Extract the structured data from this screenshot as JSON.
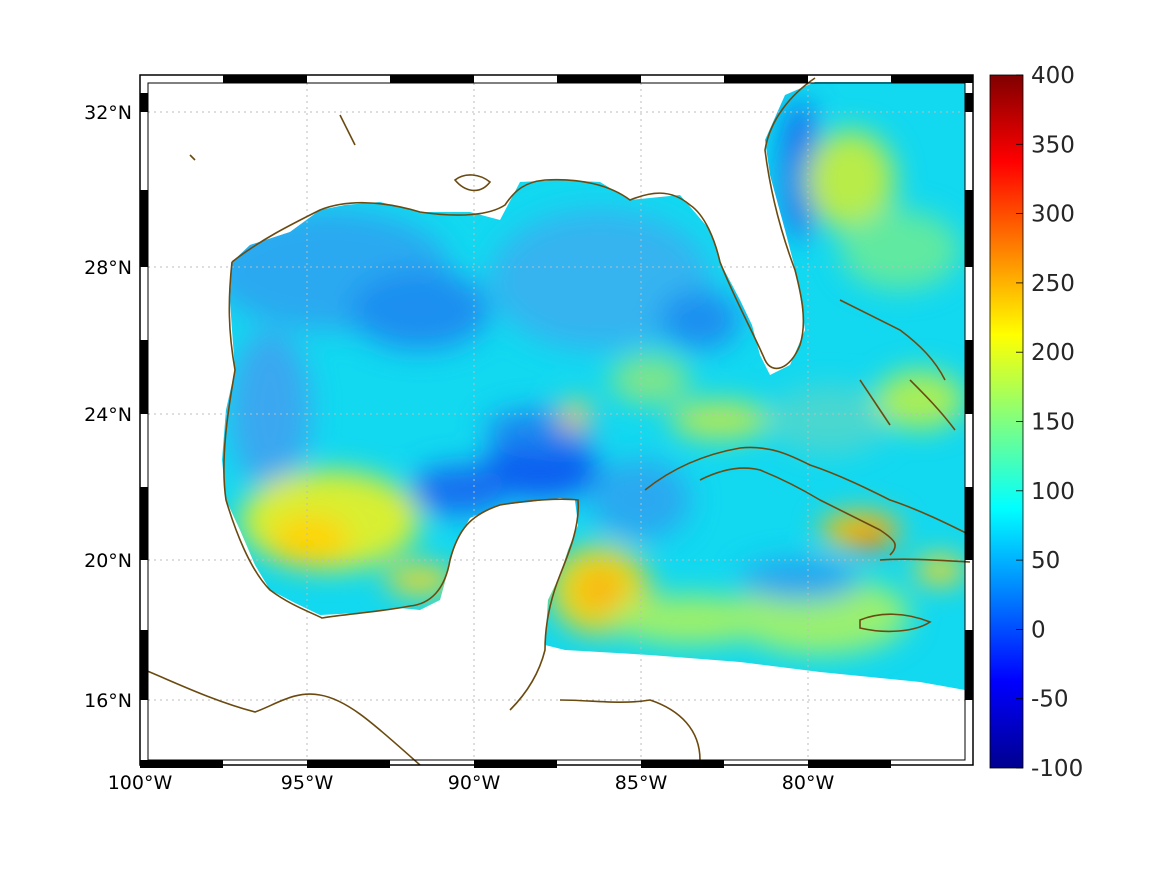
{
  "map": {
    "lon_labels": [
      "100°W",
      "95°W",
      "90°W",
      "85°W",
      "80°W"
    ],
    "lat_labels": [
      "32°N",
      "28°N",
      "24°N",
      "20°N",
      "16°N"
    ],
    "lon_range": [
      -100,
      -75
    ],
    "lat_range": [
      14.3,
      32.9
    ],
    "coastline_color": "#6b4a10",
    "grid": "dotted"
  },
  "colorbar": {
    "colormap": "jet",
    "range": [
      -100,
      400
    ],
    "tick_labels": [
      "400",
      "350",
      "300",
      "250",
      "200",
      "150",
      "100",
      "50",
      "0",
      "-50",
      "-100"
    ]
  }
}
